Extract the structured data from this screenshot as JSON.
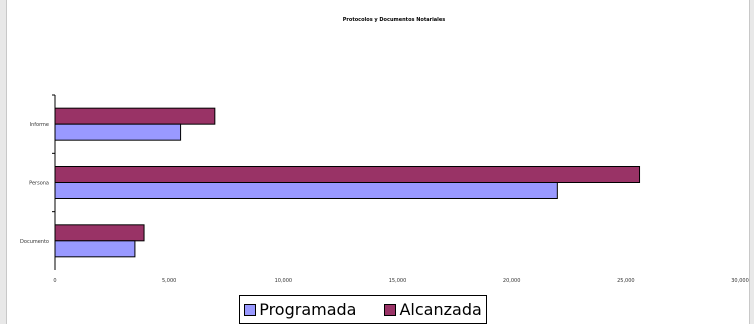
{
  "chart_data": {
    "type": "bar",
    "orientation": "horizontal",
    "title": "Protocolos y Documentos Notariales",
    "categories": [
      "Documento",
      "Persona",
      "Informe"
    ],
    "series": [
      {
        "name": "Programada",
        "values": [
          3500,
          22000,
          5500
        ],
        "color": "#9999ff"
      },
      {
        "name": "Alcanzada",
        "values": [
          3900,
          25600,
          7000
        ],
        "color": "#993366"
      }
    ],
    "xlim": [
      0,
      30000
    ],
    "xticks": [
      "0",
      "5,000",
      "10,000",
      "15,000",
      "20,000",
      "25,000",
      "30,000"
    ],
    "xlabel": "",
    "ylabel": "",
    "grid": false,
    "legend_position": "bottom"
  }
}
